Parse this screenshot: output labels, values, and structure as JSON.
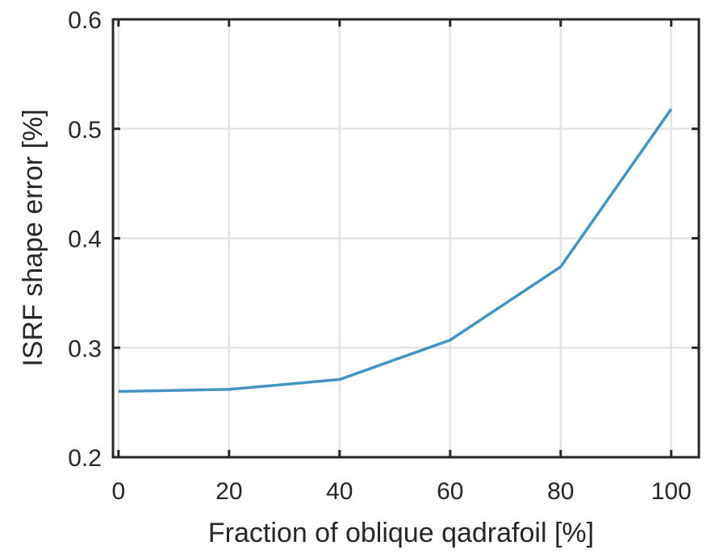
{
  "chart_data": {
    "type": "line",
    "title": "",
    "xlabel": "Fraction of oblique qadrafoil [%]",
    "ylabel": "ISRF shape error [%]",
    "xlim": [
      -1,
      105
    ],
    "ylim": [
      0.2,
      0.6
    ],
    "xticks": [
      0,
      20,
      40,
      60,
      80,
      100
    ],
    "xtick_labels": [
      "0",
      "20",
      "40",
      "60",
      "80",
      "100"
    ],
    "yticks": [
      0.2,
      0.3,
      0.4,
      0.5,
      0.6
    ],
    "ytick_labels": [
      "0.2",
      "0.3",
      "0.4",
      "0.5",
      "0.6"
    ],
    "grid": true,
    "series": [
      {
        "x": [
          0,
          20,
          40,
          60,
          80,
          100
        ],
        "y": [
          0.26,
          0.262,
          0.271,
          0.307,
          0.374,
          0.518
        ],
        "color": "#4393c3"
      }
    ]
  }
}
